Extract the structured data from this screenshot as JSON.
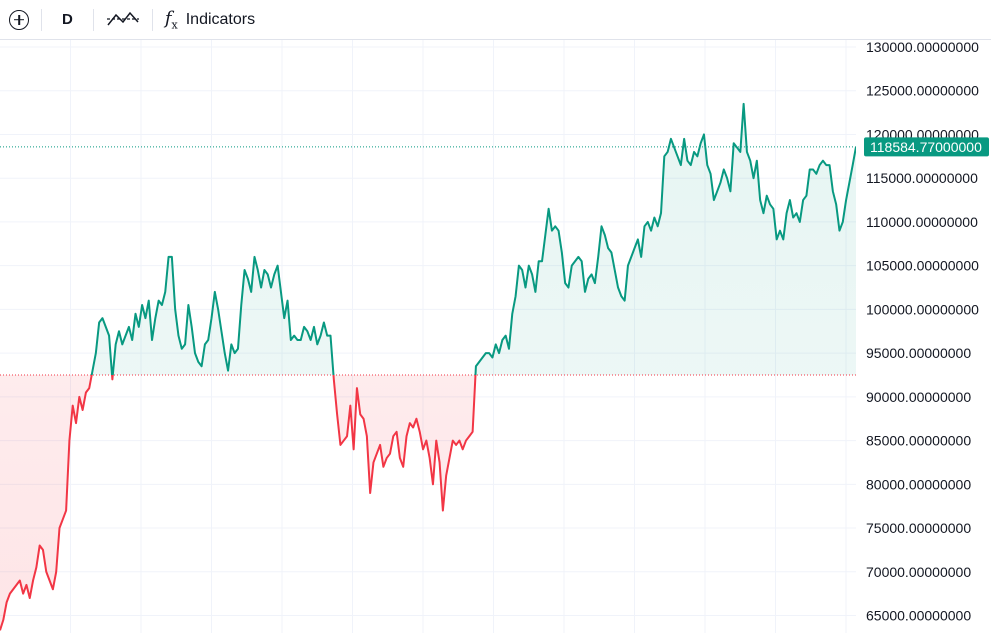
{
  "toolbar": {
    "interval_label": "D",
    "indicators_label": "Indicators"
  },
  "colors": {
    "up": "#089981",
    "down": "#f23645",
    "grid": "#f0f3fa",
    "text": "#131722"
  },
  "chart_data": {
    "type": "area",
    "baseline": 92500,
    "last_price": 118584.77,
    "last_price_label": "118584.77000000",
    "ylim": [
      63000,
      130800
    ],
    "y_ticks": [
      {
        "value": 130000,
        "label": "130000.00000000"
      },
      {
        "value": 125000,
        "label": "125000.00000000"
      },
      {
        "value": 120000,
        "label": "120000.00000000"
      },
      {
        "value": 115000,
        "label": "115000.00000000"
      },
      {
        "value": 110000,
        "label": "110000.00000000"
      },
      {
        "value": 105000,
        "label": "105000.00000000"
      },
      {
        "value": 100000,
        "label": "100000.00000000"
      },
      {
        "value": 95000,
        "label": "95000.00000000"
      },
      {
        "value": 90000,
        "label": "90000.00000000"
      },
      {
        "value": 85000,
        "label": "85000.00000000"
      },
      {
        "value": 80000,
        "label": "80000.00000000"
      },
      {
        "value": 75000,
        "label": "75000.00000000"
      },
      {
        "value": 70000,
        "label": "70000.00000000"
      },
      {
        "value": 65000,
        "label": "65000.00000000"
      }
    ],
    "series": [
      {
        "values": [
          63300,
          64500,
          66500,
          67500,
          68000,
          68500,
          69000,
          67500,
          68500,
          67000,
          69000,
          70500,
          73000,
          72500,
          70000,
          69000,
          68000,
          70000,
          75000,
          76000,
          77000,
          85000,
          89000,
          87000,
          90000,
          88500,
          90500,
          91000,
          93000,
          95000,
          98500,
          99000,
          98000,
          97000,
          92000,
          96000,
          97500,
          96000,
          97000,
          98000,
          96500,
          99500,
          98000,
          100500,
          99000,
          101000,
          96500,
          99000,
          101000,
          100500,
          102000,
          106000,
          106000,
          100000,
          97000,
          95500,
          96000,
          100500,
          98000,
          95000,
          94000,
          93500,
          96000,
          96500,
          99000,
          102000,
          100000,
          97500,
          95000,
          93000,
          96000,
          95000,
          95500,
          100500,
          104500,
          103500,
          102000,
          106000,
          104500,
          102500,
          104500,
          104000,
          102500,
          104000,
          105000,
          102000,
          99000,
          101000,
          96500,
          97000,
          96500,
          96500,
          98000,
          97500,
          96500,
          98000,
          96000,
          97000,
          98500,
          97000,
          97000,
          92000,
          88000,
          84500,
          85000,
          85500,
          89000,
          84000,
          91000,
          88000,
          87500,
          85500,
          79000,
          82500,
          83500,
          84500,
          82000,
          83000,
          83500,
          85500,
          86000,
          83000,
          82000,
          85500,
          87000,
          86500,
          87500,
          86000,
          84000,
          85000,
          83000,
          80000,
          85000,
          82500,
          77000,
          81000,
          83000,
          85000,
          84500,
          85000,
          84000,
          85000,
          85500,
          86000,
          93500,
          94000,
          94500,
          95000,
          95000,
          94500,
          96000,
          95000,
          96500,
          97000,
          95500,
          99500,
          101500,
          105000,
          104500,
          102500,
          105000,
          104000,
          102000,
          105500,
          105500,
          108500,
          111500,
          109000,
          109500,
          109000,
          106500,
          103000,
          102500,
          105000,
          105500,
          106000,
          105500,
          102000,
          103500,
          104000,
          103000,
          106000,
          109500,
          108500,
          107000,
          106500,
          104500,
          102500,
          101500,
          101000,
          105000,
          106000,
          107000,
          108000,
          106000,
          109500,
          110000,
          109000,
          110500,
          109500,
          111000,
          117500,
          118000,
          119500,
          118500,
          117500,
          116500,
          119500,
          117000,
          116500,
          118000,
          117500,
          119000,
          120000,
          116500,
          115500,
          112500,
          113500,
          114500,
          116000,
          115000,
          113500,
          119000,
          118500,
          118000,
          123500,
          118000,
          117000,
          115000,
          117000,
          112500,
          111000,
          113000,
          112000,
          111500,
          108000,
          109000,
          108000,
          111000,
          112500,
          110500,
          111000,
          110000,
          112500,
          113000,
          116000,
          116000,
          115500,
          116500,
          117000,
          116500,
          116500,
          113500,
          112000,
          109000,
          110000,
          112500,
          114500,
          116500,
          118584.77
        ]
      }
    ]
  }
}
